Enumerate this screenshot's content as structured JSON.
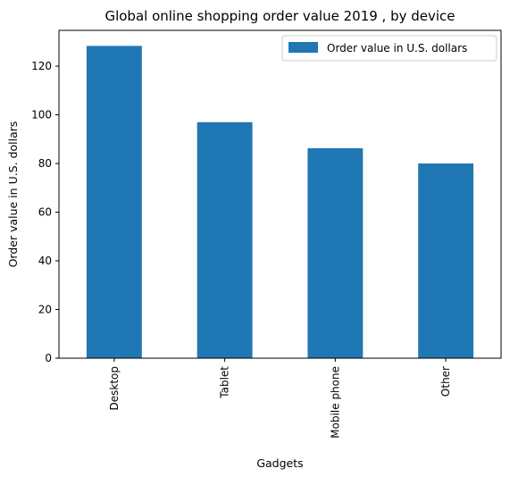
{
  "chart_data": {
    "type": "bar",
    "title": "Global online shopping order value 2019 , by device",
    "xlabel": "Gadgets",
    "ylabel": "Order value in U.S. dollars",
    "categories": [
      "Desktop",
      "Tablet",
      "Mobile phone",
      "Other"
    ],
    "series": [
      {
        "name": "Order value in U.S. dollars",
        "values": [
          128.32,
          96.98,
          86.27,
          80.01
        ],
        "color": "#1f77b4"
      }
    ],
    "ylim": [
      0,
      134.7
    ],
    "yticks": [
      0,
      20,
      40,
      60,
      80,
      100,
      120
    ],
    "grid": false,
    "legend": "top-right"
  }
}
